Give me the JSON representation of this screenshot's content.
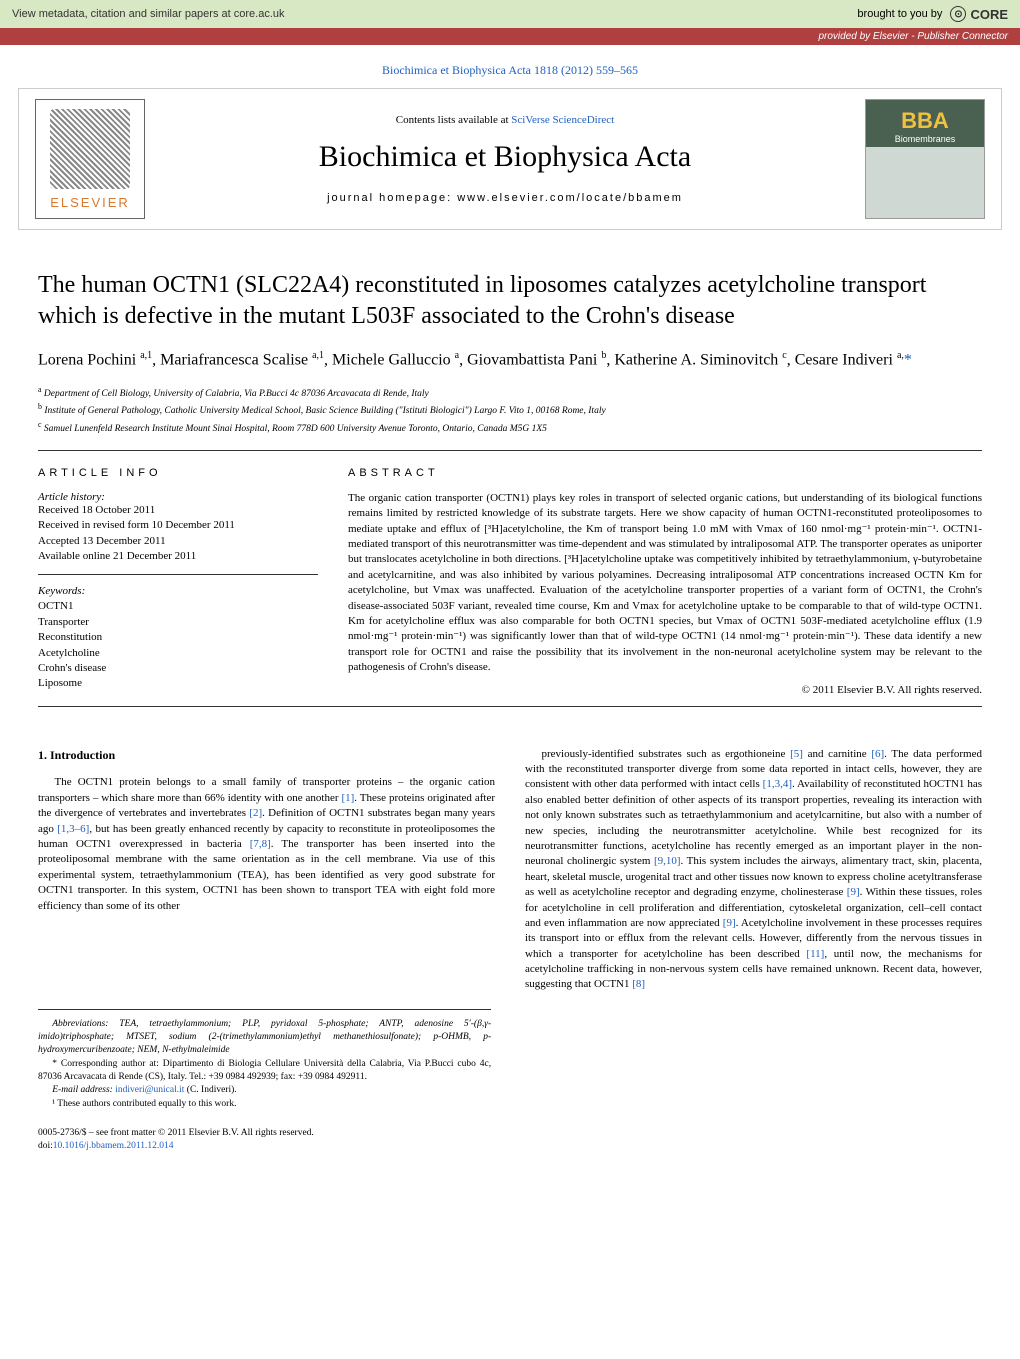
{
  "banner": {
    "left_text": "View metadata, citation and similar papers at core.ac.uk",
    "brought_text": "brought to you by",
    "core_label": "CORE",
    "provided_text": "provided by Elsevier - Publisher Connector"
  },
  "citation": {
    "text": "Biochimica et Biophysica Acta 1818 (2012) 559–565"
  },
  "masthead": {
    "contents_prefix": "Contents lists available at ",
    "contents_link": "SciVerse ScienceDirect",
    "journal_name": "Biochimica et Biophysica Acta",
    "homepage": "journal homepage: www.elsevier.com/locate/bbamem",
    "elsevier_label": "ELSEVIER",
    "bba_label": "BBA",
    "bba_sub": "Biomembranes"
  },
  "article": {
    "title": "The human OCTN1 (SLC22A4) reconstituted in liposomes catalyzes acetylcholine transport which is defective in the mutant L503F associated to the Crohn's disease",
    "authors_html": "Lorena Pochini <sup>a,1</sup>, Mariafrancesca Scalise <sup>a,1</sup>, Michele Galluccio <sup>a</sup>, Giovambattista Pani <sup>b</sup>, Katherine A. Siminovitch <sup>c</sup>, Cesare Indiveri <sup>a,</sup><span class='corr-star'>*</span>",
    "affiliations": [
      "a Department of Cell Biology, University of Calabria, Via P.Bucci 4c 87036 Arcavacata di Rende, Italy",
      "b Institute of General Pathology, Catholic University Medical School, Basic Science Building (\"Istituti Biologici\") Largo F. Vito 1, 00168 Rome, Italy",
      "c Samuel Lunenfeld Research Institute Mount Sinai Hospital, Room 778D 600 University Avenue Toronto, Ontario, Canada M5G 1X5"
    ]
  },
  "info": {
    "heading": "ARTICLE INFO",
    "history_label": "Article history:",
    "history": [
      "Received 18 October 2011",
      "Received in revised form 10 December 2011",
      "Accepted 13 December 2011",
      "Available online 21 December 2011"
    ],
    "keywords_label": "Keywords:",
    "keywords": [
      "OCTN1",
      "Transporter",
      "Reconstitution",
      "Acetylcholine",
      "Crohn's disease",
      "Liposome"
    ]
  },
  "abstract": {
    "heading": "ABSTRACT",
    "text": "The organic cation transporter (OCTN1) plays key roles in transport of selected organic cations, but understanding of its biological functions remains limited by restricted knowledge of its substrate targets. Here we show capacity of human OCTN1-reconstituted proteoliposomes to mediate uptake and efflux of [³H]acetylcholine, the Km of transport being 1.0 mM with Vmax of 160 nmol·mg⁻¹ protein·min⁻¹. OCTN1-mediated transport of this neurotransmitter was time-dependent and was stimulated by intraliposomal ATP. The transporter operates as uniporter but translocates acetylcholine in both directions. [³H]acetylcholine uptake was competitively inhibited by tetraethylammonium, γ-butyrobetaine and acetylcarnitine, and was also inhibited by various polyamines. Decreasing intraliposomal ATP concentrations increased OCTN Km for acetylcholine, but Vmax was unaffected. Evaluation of the acetylcholine transporter properties of a variant form of OCTN1, the Crohn's disease-associated 503F variant, revealed time course, Km and Vmax for acetylcholine uptake to be comparable to that of wild-type OCTN1. Km for acetylcholine efflux was also comparable for both OCTN1 species, but Vmax of OCTN1 503F-mediated acetylcholine efflux (1.9 nmol·mg⁻¹ protein·min⁻¹) was significantly lower than that of wild-type OCTN1 (14 nmol·mg⁻¹ protein·min⁻¹). These data identify a new transport role for OCTN1 and raise the possibility that its involvement in the non-neuronal acetylcholine system may be relevant to the pathogenesis of Crohn's disease.",
    "copyright": "© 2011 Elsevier B.V. All rights reserved."
  },
  "body": {
    "intro_heading": "1. Introduction",
    "col1": "The OCTN1 protein belongs to a small family of transporter proteins – the organic cation transporters – which share more than 66% identity with one another [1]. These proteins originated after the divergence of vertebrates and invertebrates [2]. Definition of OCTN1 substrates began many years ago [1,3–6], but has been greatly enhanced recently by capacity to reconstitute in proteoliposomes the human OCTN1 overexpressed in bacteria [7,8]. The transporter has been inserted into the proteoliposomal membrane with the same orientation as in the cell membrane. Via use of this experimental system, tetraethylammonium (TEA), has been identified as very good substrate for OCTN1 transporter. In this system, OCTN1 has been shown to transport TEA with eight fold more efficiency than some of its other",
    "col2": "previously-identified substrates such as ergothioneine [5] and carnitine [6]. The data performed with the reconstituted transporter diverge from some data reported in intact cells, however, they are consistent with other data performed with intact cells [1,3,4]. Availability of reconstituted hOCTN1 has also enabled better definition of other aspects of its transport properties, revealing its interaction with not only known substrates such as tetraethylammonium and acetylcarnitine, but also with a number of new species, including the neurotransmitter acetylcholine. While best recognized for its neurotransmitter functions, acetylcholine has recently emerged as an important player in the non-neuronal cholinergic system [9,10]. This system includes the airways, alimentary tract, skin, placenta, heart, skeletal muscle, urogenital tract and other tissues now known to express choline acetyltransferase as well as acetylcholine receptor and degrading enzyme, cholinesterase [9]. Within these tissues, roles for acetylcholine in cell proliferation and differentiation, cytoskeletal organization, cell–cell contact and even inflammation are now appreciated [9]. Acetylcholine involvement in these processes requires its transport into or efflux from the relevant cells. However, differently from the nervous tissues in which a transporter for acetylcholine has been described [11], until now, the mechanisms for acetylcholine trafficking in non-nervous system cells have remained unknown. Recent data, however, suggesting that OCTN1 [8]"
  },
  "footnotes": {
    "abbrev": "Abbreviations: TEA, tetraethylammonium; PLP, pyridoxal 5-phosphate; ANTP, adenosine 5′-(β,γ-imido)triphosphate; MTSET, sodium (2-(trimethylammonium)ethyl methanethiosulfonate); p-OHMB, p-hydroxymercuribenzoate; NEM, N-ethylmaleimide",
    "corr": "* Corresponding author at: Dipartimento di Biologia Cellulare Università della Calabria, Via P.Bucci cubo 4c, 87036 Arcavacata di Rende (CS), Italy. Tel.: +39 0984 492939; fax: +39 0984 492911.",
    "email_label": "E-mail address: ",
    "email": "indiveri@unical.it",
    "email_suffix": " (C. Indiveri).",
    "equal": "¹ These authors contributed equally to this work."
  },
  "bottom": {
    "issn": "0005-2736/$ – see front matter © 2011 Elsevier B.V. All rights reserved.",
    "doi_prefix": "doi:",
    "doi": "10.1016/j.bbamem.2011.12.014"
  },
  "links": {
    "ref1": "[1]",
    "ref2": "[2]",
    "ref136": "[1,3–6]",
    "ref78": "[7,8]",
    "ref5": "[5]",
    "ref6": "[6]",
    "ref134": "[1,3,4]",
    "ref910": "[9,10]",
    "ref9": "[9]",
    "ref11": "[11]",
    "ref8": "[8]"
  }
}
